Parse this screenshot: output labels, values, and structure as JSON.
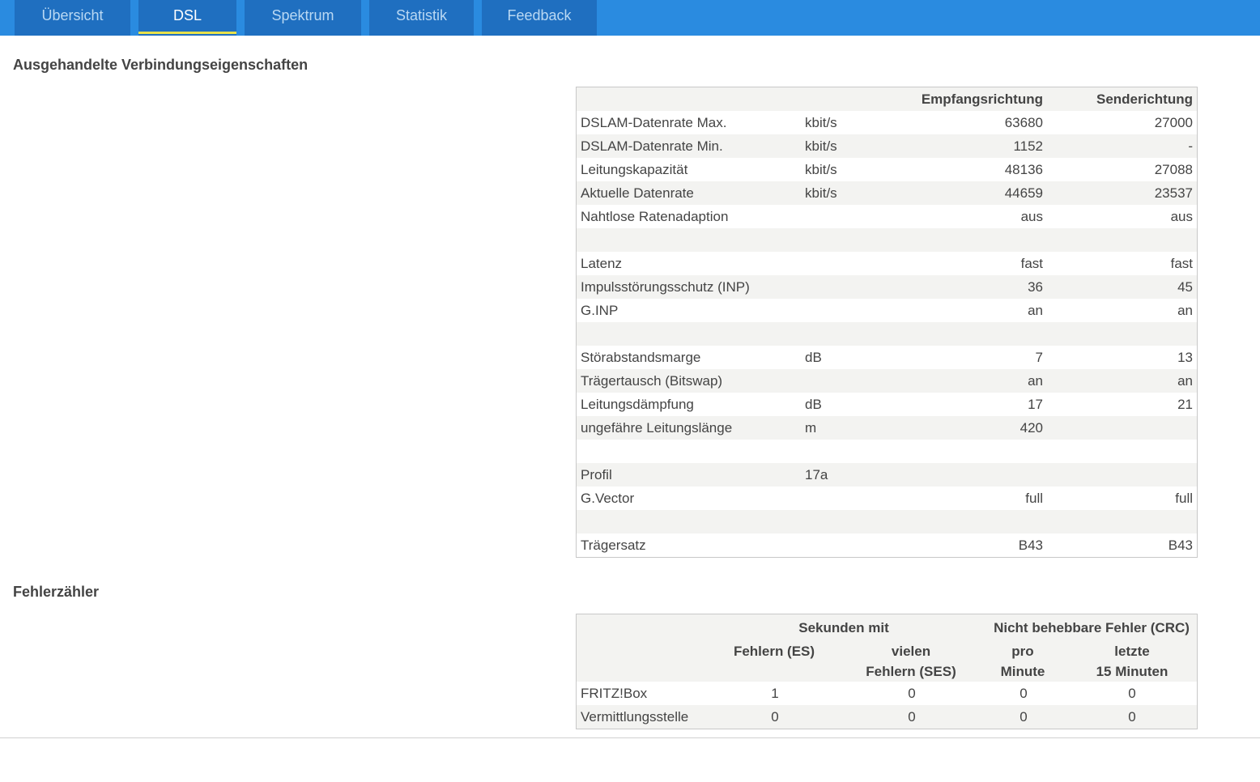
{
  "tabs": [
    {
      "label": "Übersicht",
      "active": false
    },
    {
      "label": "DSL",
      "active": true
    },
    {
      "label": "Spektrum",
      "active": false
    },
    {
      "label": "Statistik",
      "active": false
    },
    {
      "label": "Feedback",
      "active": false
    }
  ],
  "colors": {
    "topbar": "#2a8be0",
    "tab": "#1f6fc0",
    "active_underline": "#e8e14a",
    "row_alt": "#f3f3f1"
  },
  "props": {
    "title": "Ausgehandelte Verbindungseigenschaften",
    "header": {
      "rx": "Empfangsrichtung",
      "tx": "Senderichtung"
    },
    "rows": [
      {
        "label": "DSLAM-Datenrate Max.",
        "unit": "kbit/s",
        "rx": "63680",
        "tx": "27000"
      },
      {
        "label": "DSLAM-Datenrate Min.",
        "unit": "kbit/s",
        "rx": "1152",
        "tx": "-"
      },
      {
        "label": "Leitungskapazität",
        "unit": "kbit/s",
        "rx": "48136",
        "tx": "27088"
      },
      {
        "label": "Aktuelle Datenrate",
        "unit": "kbit/s",
        "rx": "44659",
        "tx": "23537"
      },
      {
        "label": "Nahtlose Ratenadaption",
        "unit": "",
        "rx": "aus",
        "tx": "aus"
      },
      {
        "label": "",
        "unit": "",
        "rx": "",
        "tx": ""
      },
      {
        "label": "Latenz",
        "unit": "",
        "rx": "fast",
        "tx": "fast"
      },
      {
        "label": "Impulsstörungsschutz (INP)",
        "unit": "",
        "rx": "36",
        "tx": "45"
      },
      {
        "label": "G.INP",
        "unit": "",
        "rx": "an",
        "tx": "an"
      },
      {
        "label": "",
        "unit": "",
        "rx": "",
        "tx": ""
      },
      {
        "label": "Störabstandsmarge",
        "unit": "dB",
        "rx": "7",
        "tx": "13"
      },
      {
        "label": "Trägertausch (Bitswap)",
        "unit": "",
        "rx": "an",
        "tx": "an"
      },
      {
        "label": "Leitungsdämpfung",
        "unit": "dB",
        "rx": "17",
        "tx": "21"
      },
      {
        "label": "ungefähre Leitungslänge",
        "unit": "m",
        "rx": "420",
        "tx": ""
      },
      {
        "label": "",
        "unit": "",
        "rx": "",
        "tx": ""
      },
      {
        "label": "Profil",
        "unit": "17a",
        "rx": "",
        "tx": ""
      },
      {
        "label": "G.Vector",
        "unit": "",
        "rx": "full",
        "tx": "full"
      },
      {
        "label": "",
        "unit": "",
        "rx": "",
        "tx": ""
      },
      {
        "label": "Trägersatz",
        "unit": "",
        "rx": "B43",
        "tx": "B43"
      }
    ]
  },
  "errors": {
    "title": "Fehlerzähler",
    "group1": "Sekunden mit",
    "group2": "Nicht behebbare Fehler (CRC)",
    "col_es": "Fehlern (ES)",
    "col_ses_1": "vielen",
    "col_ses_2": "Fehlern (SES)",
    "col_pm_1": "pro",
    "col_pm_2": "Minute",
    "col_15_1": "letzte",
    "col_15_2": "15 Minuten",
    "rows": [
      {
        "label": "FRITZ!Box",
        "es": "1",
        "ses": "0",
        "pm": "0",
        "m15": "0"
      },
      {
        "label": "Vermittlungsstelle",
        "es": "0",
        "ses": "0",
        "pm": "0",
        "m15": "0"
      }
    ]
  }
}
